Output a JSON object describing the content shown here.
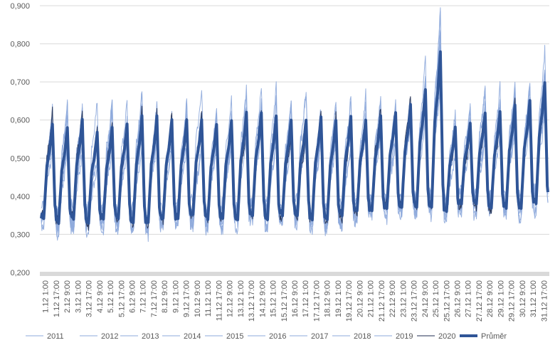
{
  "chart_data": {
    "type": "line",
    "title": "",
    "xlabel": "",
    "ylabel": "",
    "ylim": [
      0.2,
      0.9
    ],
    "y_ticks": [
      "0,200",
      "0,300",
      "0,400",
      "0,500",
      "0,600",
      "0,700",
      "0,800",
      "0,900"
    ],
    "grid": "horizontal",
    "legend_position": "bottom",
    "x_tick_labels": [
      "1.12 1:00",
      "1.12 17:00",
      "2.12 9:00",
      "3.12 1:00",
      "3.12 17:00",
      "4.12 9:00",
      "5.12 1:00",
      "5.12 17:00",
      "6.12 9:00",
      "7.12 1:00",
      "7.12 17:00",
      "8.12 9:00",
      "9.12 1:00",
      "9.12 17:00",
      "10.12 9:00",
      "11.12 1:00",
      "11.12 17:00",
      "12.12 9:00",
      "13.12 1:00",
      "13.12 17:00",
      "14.12 9:00",
      "15.12 1:00",
      "15.12 17:00",
      "16.12 9:00",
      "17.12 1:00",
      "17.12 17:00",
      "18.12 9:00",
      "19.12 1:00",
      "19.12 17:00",
      "20.12 9:00",
      "21.12 1:00",
      "21.12 17:00",
      "22.12 9:00",
      "23.12 1:00",
      "23.12 17:00",
      "24.12 9:00",
      "25.12 1:00",
      "25.12 17:00",
      "26.12 9:00",
      "27.12 1:00",
      "27.12 17:00",
      "28.12 9:00",
      "29.12 1:00",
      "29.12 17:00",
      "30.12 9:00",
      "31.12 1:00",
      "31.12 17:00"
    ],
    "daily_peak_average": [
      0.59,
      0.58,
      0.6,
      0.57,
      0.58,
      0.59,
      0.61,
      0.61,
      0.6,
      0.6,
      0.6,
      0.59,
      0.6,
      0.62,
      0.62,
      0.61,
      0.6,
      0.6,
      0.61,
      0.6,
      0.61,
      0.6,
      0.61,
      0.62,
      0.64,
      0.68,
      0.78,
      0.58,
      0.59,
      0.62,
      0.62,
      0.64,
      0.65,
      0.7
    ],
    "daily_trough_average": [
      0.34,
      0.33,
      0.34,
      0.33,
      0.34,
      0.34,
      0.33,
      0.33,
      0.34,
      0.34,
      0.35,
      0.34,
      0.34,
      0.34,
      0.35,
      0.34,
      0.35,
      0.35,
      0.34,
      0.34,
      0.35,
      0.36,
      0.36,
      0.37,
      0.37,
      0.37,
      0.37,
      0.36,
      0.38,
      0.38,
      0.37,
      0.37,
      0.37,
      0.38
    ],
    "series": [
      {
        "name": "2011",
        "color": "#8eaadb",
        "width": 1
      },
      {
        "name": "2012",
        "color": "#8eaadb",
        "width": 1
      },
      {
        "name": "2013",
        "color": "#8eaadb",
        "width": 1
      },
      {
        "name": "2014",
        "color": "#8eaadb",
        "width": 1
      },
      {
        "name": "2015",
        "color": "#8eaadb",
        "width": 1
      },
      {
        "name": "2016",
        "color": "#8eaadb",
        "width": 1
      },
      {
        "name": "2017",
        "color": "#8eaadb",
        "width": 1
      },
      {
        "name": "2018",
        "color": "#8eaadb",
        "width": 1
      },
      {
        "name": "2019",
        "color": "#8eaadb",
        "width": 1
      },
      {
        "name": "2020",
        "color": "#1f2d50",
        "width": 1
      },
      {
        "name": "Průměr",
        "color": "#2f5597",
        "width": 4
      }
    ]
  }
}
